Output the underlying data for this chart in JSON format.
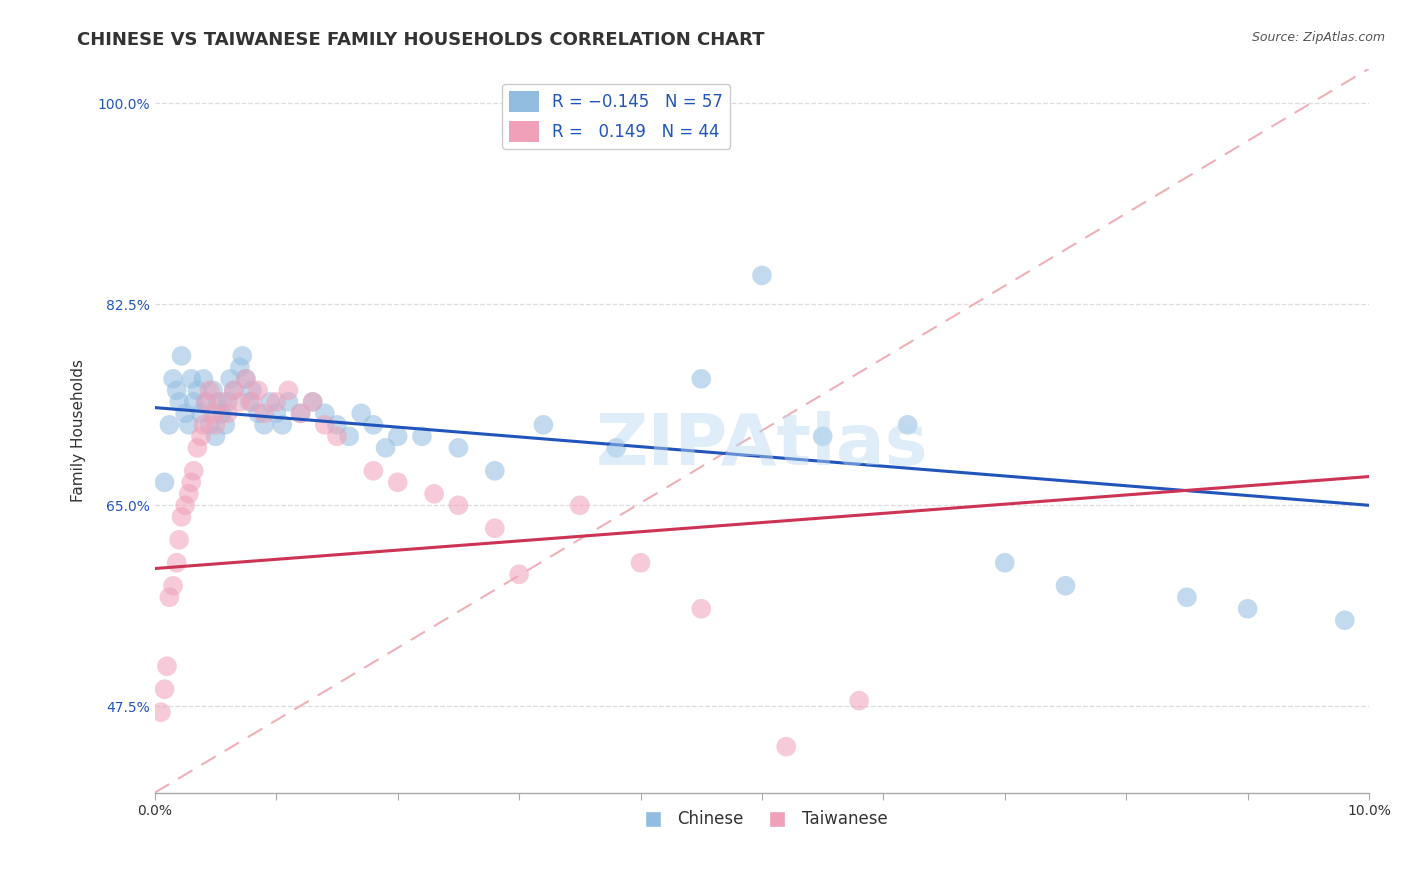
{
  "title": "CHINESE VS TAIWANESE FAMILY HOUSEHOLDS CORRELATION CHART",
  "source": "Source: ZipAtlas.com",
  "ylabel": "Family Households",
  "x_min": 0.0,
  "x_max": 10.0,
  "y_min": 40.0,
  "y_max": 103.0,
  "yticks": [
    47.5,
    65.0,
    82.5,
    100.0
  ],
  "xticks": [
    0.0,
    1.0,
    2.0,
    3.0,
    4.0,
    5.0,
    6.0,
    7.0,
    8.0,
    9.0,
    10.0
  ],
  "xlabel_shown": [
    0.0,
    10.0
  ],
  "chinese_legend": "Chinese",
  "taiwanese_legend": "Taiwanese",
  "blue_color": "#92bde0",
  "pink_color": "#f0a0b8",
  "blue_line_color": "#2255bb",
  "pink_line_color": "#cc3355",
  "diag_line_color": "#f0b0b8",
  "watermark": "ZIPAtlas",
  "blue_line_y0": 73.5,
  "blue_line_y1": 65.0,
  "pink_line_y0": 59.5,
  "pink_line_y1": 67.5,
  "chinese_x": [
    0.08,
    0.12,
    0.15,
    0.18,
    0.2,
    0.22,
    0.25,
    0.28,
    0.3,
    0.32,
    0.35,
    0.38,
    0.4,
    0.42,
    0.45,
    0.48,
    0.5,
    0.52,
    0.55,
    0.58,
    0.6,
    0.62,
    0.65,
    0.7,
    0.72,
    0.75,
    0.78,
    0.8,
    0.85,
    0.9,
    0.95,
    1.0,
    1.05,
    1.1,
    1.2,
    1.3,
    1.4,
    1.5,
    1.6,
    1.7,
    1.8,
    1.9,
    2.0,
    2.2,
    2.5,
    2.8,
    3.2,
    3.8,
    4.5,
    5.0,
    5.5,
    6.2,
    7.0,
    7.5,
    8.5,
    9.0,
    9.8
  ],
  "chinese_y": [
    67.0,
    72.0,
    76.0,
    75.0,
    74.0,
    78.0,
    73.0,
    72.0,
    76.0,
    74.0,
    75.0,
    73.0,
    76.0,
    74.0,
    72.0,
    75.0,
    71.0,
    74.0,
    73.0,
    72.0,
    74.0,
    76.0,
    75.0,
    77.0,
    78.0,
    76.0,
    74.0,
    75.0,
    73.0,
    72.0,
    74.0,
    73.0,
    72.0,
    74.0,
    73.0,
    74.0,
    73.0,
    72.0,
    71.0,
    73.0,
    72.0,
    70.0,
    71.0,
    71.0,
    70.0,
    68.0,
    72.0,
    70.0,
    76.0,
    85.0,
    71.0,
    72.0,
    60.0,
    58.0,
    57.0,
    56.0,
    55.0
  ],
  "taiwanese_x": [
    0.05,
    0.08,
    0.1,
    0.12,
    0.15,
    0.18,
    0.2,
    0.22,
    0.25,
    0.28,
    0.3,
    0.32,
    0.35,
    0.38,
    0.4,
    0.42,
    0.45,
    0.48,
    0.5,
    0.55,
    0.6,
    0.65,
    0.7,
    0.75,
    0.8,
    0.85,
    0.9,
    1.0,
    1.1,
    1.2,
    1.3,
    1.4,
    1.5,
    1.8,
    2.0,
    2.3,
    2.5,
    2.8,
    3.0,
    3.5,
    4.0,
    4.5,
    5.2,
    5.8
  ],
  "taiwanese_y": [
    47.0,
    49.0,
    51.0,
    57.0,
    58.0,
    60.0,
    62.0,
    64.0,
    65.0,
    66.0,
    67.0,
    68.0,
    70.0,
    71.0,
    72.0,
    74.0,
    75.0,
    73.0,
    72.0,
    74.0,
    73.0,
    75.0,
    74.0,
    76.0,
    74.0,
    75.0,
    73.0,
    74.0,
    75.0,
    73.0,
    74.0,
    72.0,
    71.0,
    68.0,
    67.0,
    66.0,
    65.0,
    63.0,
    59.0,
    65.0,
    60.0,
    56.0,
    44.0,
    48.0
  ],
  "title_fontsize": 13,
  "axis_label_fontsize": 11,
  "tick_fontsize": 10,
  "legend_fontsize": 12,
  "watermark_fontsize": 52,
  "background_color": "#ffffff",
  "grid_color": "#dddddd"
}
